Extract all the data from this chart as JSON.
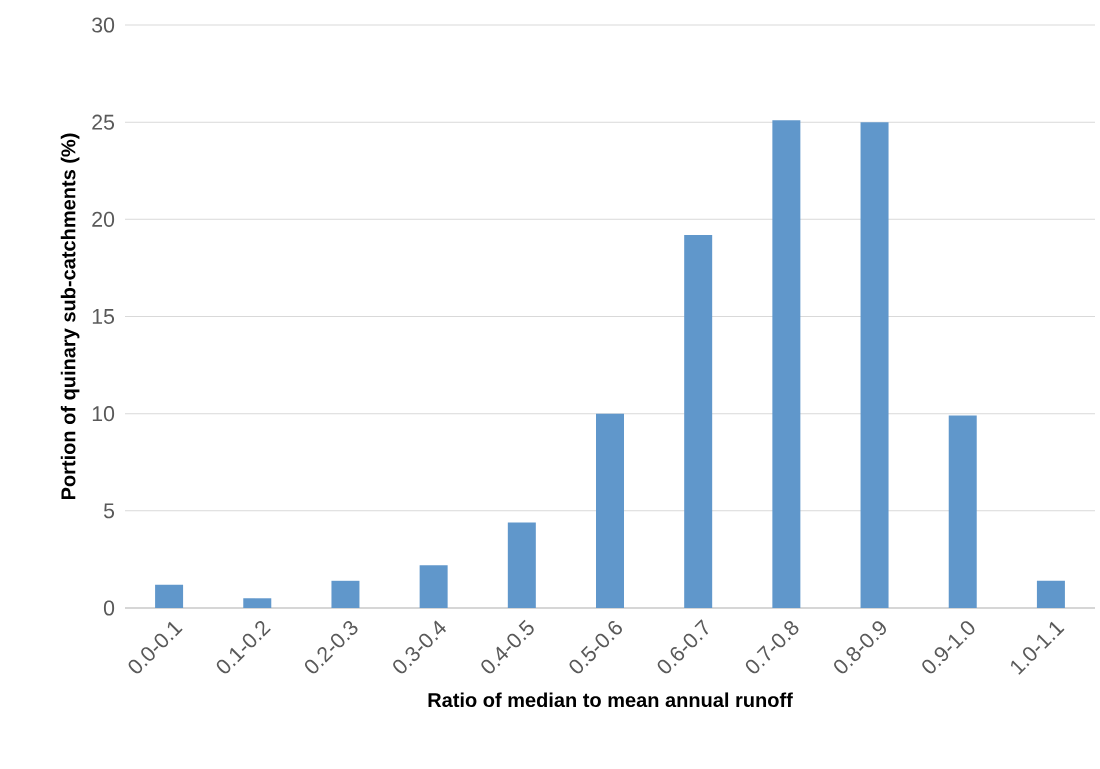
{
  "chart_data": {
    "type": "bar",
    "xlabel": "Ratio of median to mean annual runoff",
    "ylabel": "Portion of quinary sub-catchments (%)",
    "categories": [
      "0.0-0.1",
      "0.1-0.2",
      "0.2-0.3",
      "0.3-0.4",
      "0.4-0.5",
      "0.5-0.6",
      "0.6-0.7",
      "0.7-0.8",
      "0.8-0.9",
      "0.9-1.0",
      "1.0-1.1"
    ],
    "values": [
      1.2,
      0.5,
      1.4,
      2.2,
      4.4,
      10.0,
      19.2,
      25.1,
      25.0,
      9.9,
      1.4
    ],
    "color": "#6097cb",
    "ylim": [
      0,
      30
    ],
    "yticks": [
      0,
      5,
      10,
      15,
      20,
      25,
      30
    ],
    "grid": "y"
  }
}
